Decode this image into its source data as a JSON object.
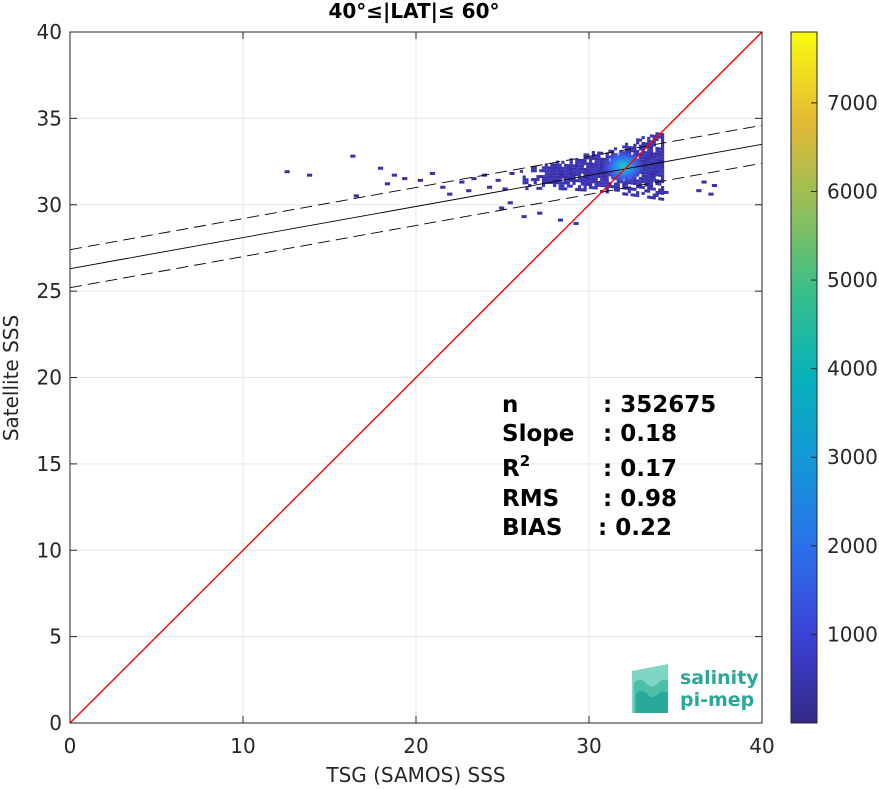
{
  "chart_data": {
    "type": "heatmap",
    "title": "40°≤|LAT|≤ 60°",
    "xlabel": "TSG (SAMOS) SSS",
    "ylabel": "Satellite SSS",
    "xlim": [
      0,
      40
    ],
    "ylim": [
      0,
      40
    ],
    "xticks": [
      0,
      10,
      20,
      30,
      40
    ],
    "yticks": [
      0,
      5,
      10,
      15,
      20,
      25,
      30,
      35,
      40
    ],
    "grid": true,
    "colorbar": {
      "ticks": [
        1000,
        2000,
        3000,
        4000,
        5000,
        6000,
        7000
      ],
      "range": [
        0,
        7800
      ],
      "colormap": "parula"
    },
    "density_core": {
      "x_range": [
        22,
        34.5
      ],
      "y_range": [
        29,
        34.5
      ],
      "peak": [
        32,
        32.2
      ]
    },
    "identity_line": {
      "color": "#ff0000",
      "from": [
        0,
        0
      ],
      "to": [
        40,
        40
      ]
    },
    "regression_line": {
      "intercept": 26.3,
      "slope": 0.18
    },
    "confidence_offset": 1.1,
    "stats": [
      {
        "key": "n",
        "value": ": 352675"
      },
      {
        "key": "Slope",
        "value": ": 0.18"
      },
      {
        "key": "R",
        "sup": "2",
        "value": ": 0.17"
      },
      {
        "key": "RMS",
        "value": ": 0.98"
      },
      {
        "key": "BIAS",
        "value": ": 0.22"
      }
    ],
    "logo": {
      "line1": "salinity",
      "line2": "pi-mep"
    }
  }
}
